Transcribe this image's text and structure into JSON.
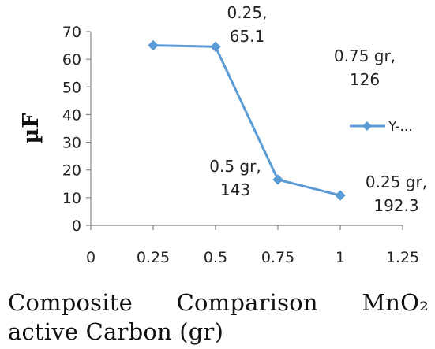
{
  "chart_data": {
    "type": "line",
    "ylabel": "µF",
    "xlim": [
      0,
      1.25
    ],
    "ylim": [
      0,
      70
    ],
    "x_ticks": [
      "0",
      "0.25",
      "0.5",
      "0.75",
      "1",
      "1.25"
    ],
    "y_ticks": [
      "0",
      "10",
      "20",
      "30",
      "40",
      "50",
      "60",
      "70"
    ],
    "grid": false,
    "legend_position": "right",
    "series": [
      {
        "name": "Y-...",
        "color": "#5B9BD5",
        "marker": "diamond",
        "x": [
          0.25,
          0.5,
          0.75,
          1.0
        ],
        "y": [
          65,
          64.5,
          16.5,
          10.8
        ]
      }
    ],
    "annotations": [
      {
        "lines": [
          "0.25,",
          "65.1"
        ]
      },
      {
        "lines": [
          "0.75 gr,",
          "126"
        ]
      },
      {
        "lines": [
          "0.5 gr,",
          "143"
        ]
      },
      {
        "lines": [
          "0.25 gr,",
          "192.3"
        ]
      }
    ]
  },
  "caption": {
    "line1": [
      "Composite",
      "Comparison",
      "MnO₂"
    ],
    "line2": "active Carbon (gr)"
  }
}
